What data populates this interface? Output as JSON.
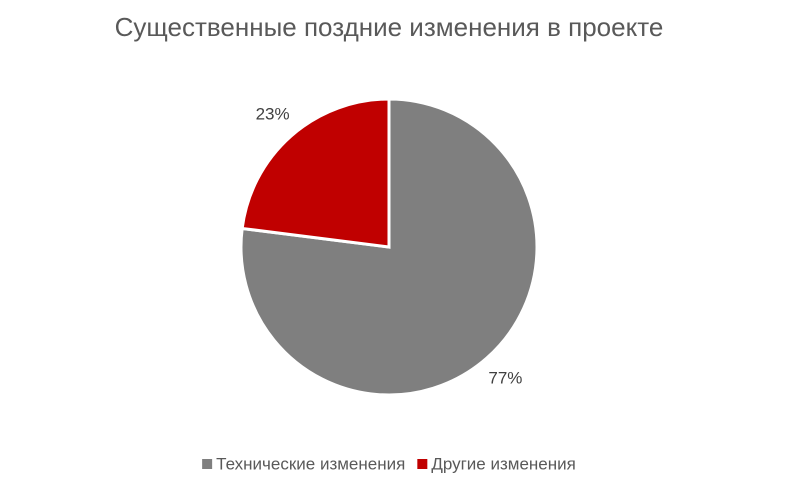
{
  "chart_data": {
    "type": "pie",
    "title": "Существенные поздние изменения в проекте",
    "categories": [
      "Технические изменения",
      "Другие изменения"
    ],
    "values": [
      77,
      23
    ],
    "value_labels": [
      "77%",
      "23%"
    ],
    "colors": [
      "#7f7f7f",
      "#c00000"
    ],
    "legend": "bottom"
  }
}
